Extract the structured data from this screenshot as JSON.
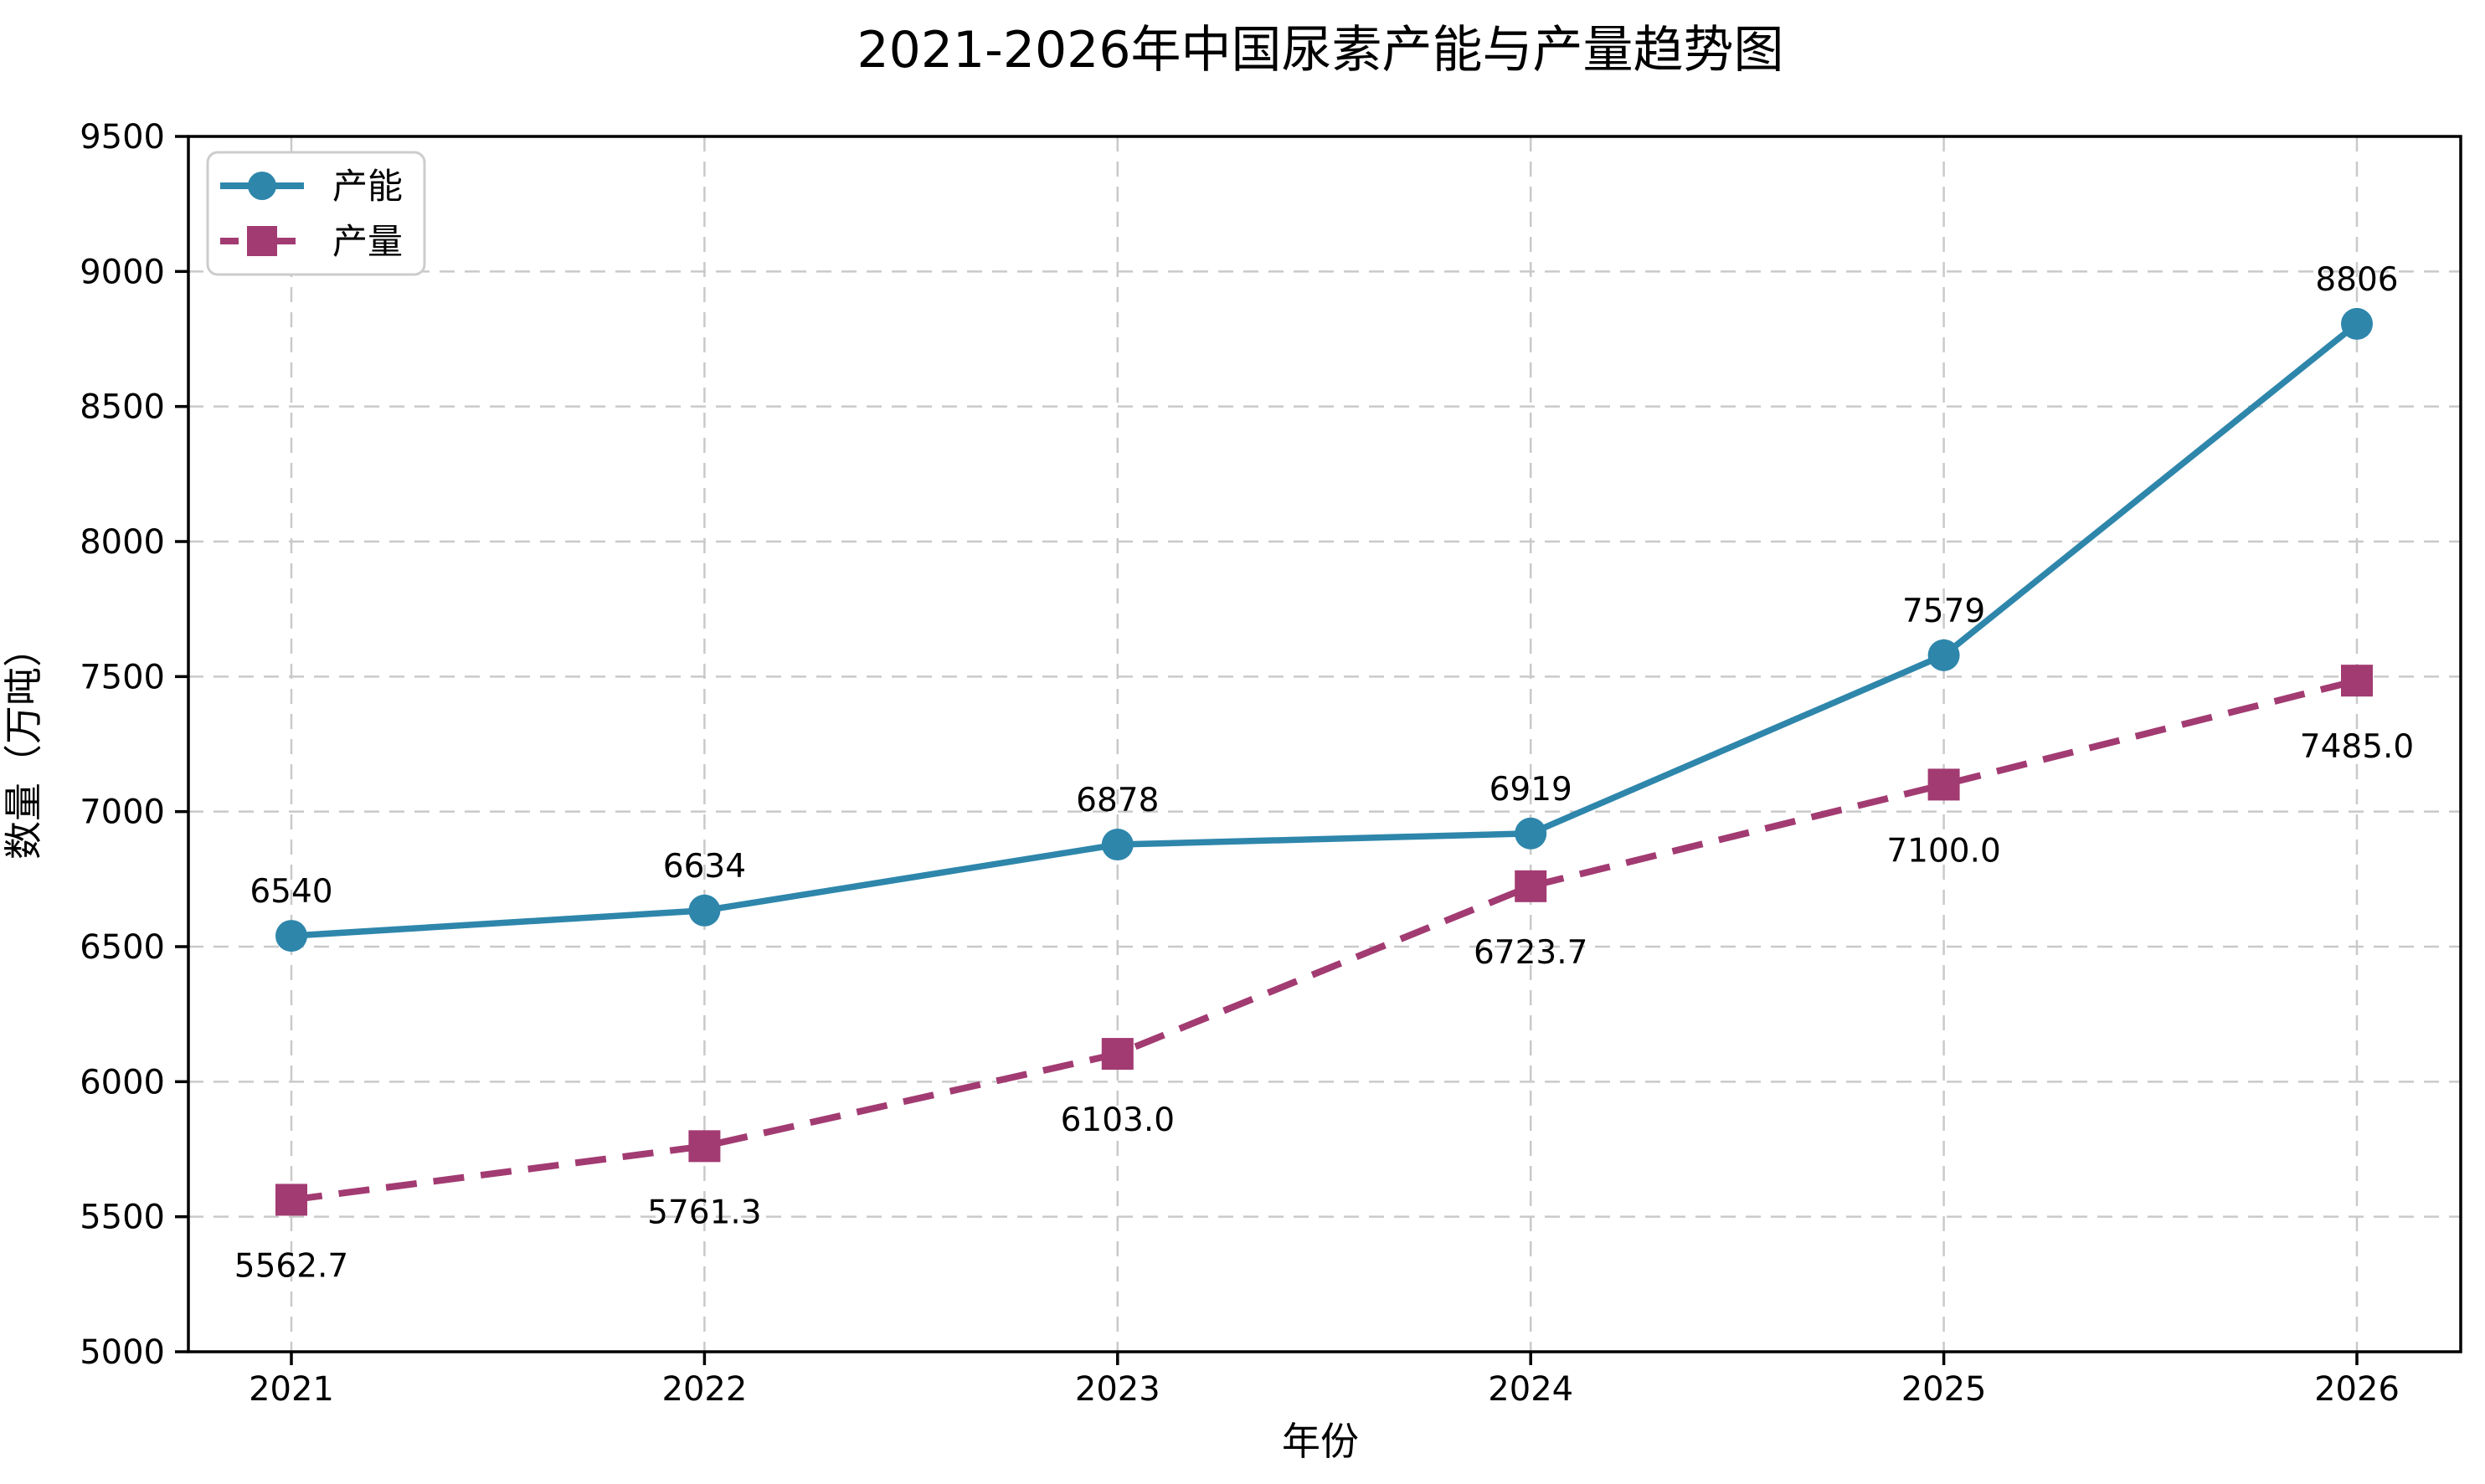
{
  "chart_data": {
    "type": "line",
    "title": "2021-2026年中国尿素产能与产量趋势图",
    "xlabel": "年份",
    "ylabel": "数量（万吨）",
    "categories": [
      "2021",
      "2022",
      "2023",
      "2024",
      "2025",
      "2026"
    ],
    "series": [
      {
        "name": "产能",
        "values": [
          6540,
          6634,
          6878,
          6919,
          7579,
          8806
        ],
        "labels": [
          "6540",
          "6634",
          "6878",
          "6919",
          "7579",
          "8806"
        ],
        "color": "#2E86AB",
        "line_style": "solid",
        "marker": "circle",
        "label_position": "above"
      },
      {
        "name": "产量",
        "values": [
          5562.7,
          5761.3,
          6103.0,
          6723.7,
          7100.0,
          7485.0
        ],
        "labels": [
          "5562.7",
          "5761.3",
          "6103.0",
          "6723.7",
          "7100.0",
          "7485.0"
        ],
        "color": "#A23B72",
        "line_style": "dashed",
        "marker": "square",
        "label_position": "below"
      }
    ],
    "ylim": [
      5000,
      9500
    ],
    "yticks": [
      5000,
      5500,
      6000,
      6500,
      7000,
      7500,
      8000,
      8500,
      9000,
      9500
    ],
    "grid": true,
    "grid_color": "#c9c9c9",
    "axis_color": "#000000",
    "legend_position": "upper-left"
  }
}
